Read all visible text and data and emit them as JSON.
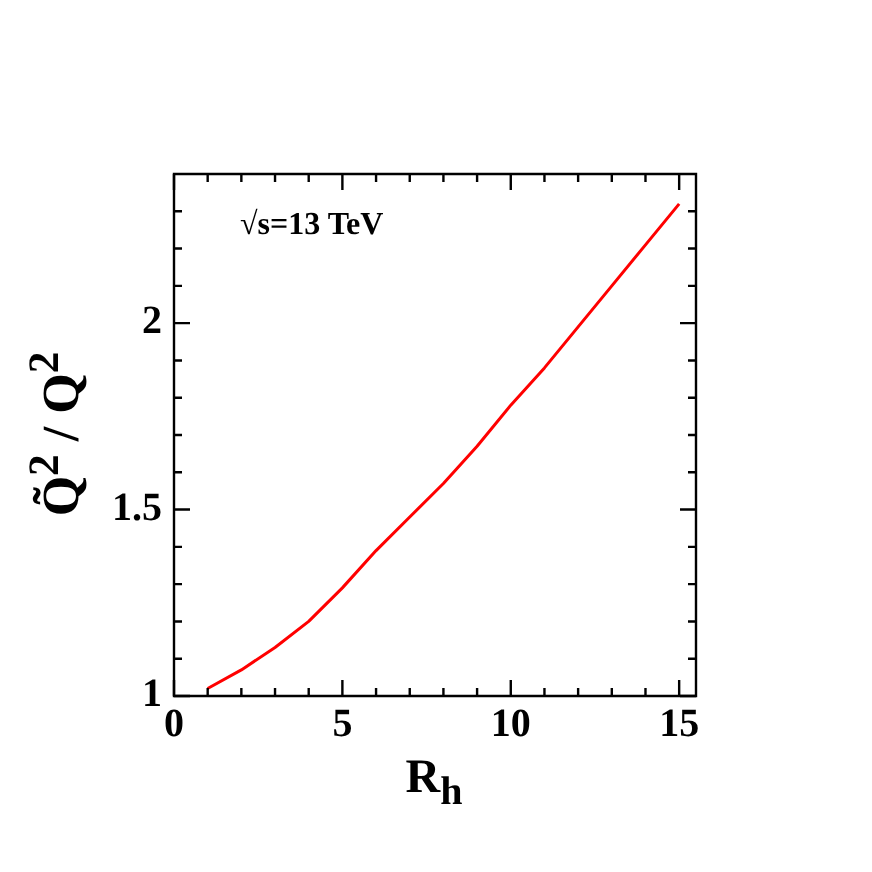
{
  "chart_data": {
    "type": "line",
    "xlabel": "R$_{h}$",
    "ylabel": "Q̃$^{2}$ / Q$^{2}$",
    "annotations": [
      "√s=13 TeV"
    ],
    "x": [
      1,
      2,
      3,
      4,
      5,
      6,
      7,
      8,
      9,
      10,
      11,
      12,
      13,
      14,
      15
    ],
    "series": [
      {
        "color": "#ff0000",
        "values": [
          1.02,
          1.07,
          1.13,
          1.2,
          1.29,
          1.39,
          1.48,
          1.57,
          1.67,
          1.78,
          1.88,
          1.99,
          2.1,
          2.21,
          2.32
        ]
      }
    ],
    "xlim": [
      0,
      15.5
    ],
    "ylim": [
      1,
      2.4
    ],
    "xticks": [
      0,
      {
        "value": 1,
        "label": null
      },
      {
        "value": 2,
        "label": null
      },
      {
        "value": 3,
        "label": null
      },
      {
        "value": 4,
        "label": null
      },
      5,
      {
        "value": 6,
        "label": null
      },
      {
        "value": 7,
        "label": null
      },
      {
        "value": 8,
        "label": null
      },
      {
        "value": 9,
        "label": null
      },
      10,
      {
        "value": 11,
        "label": null
      },
      {
        "value": 12,
        "label": null
      },
      {
        "value": 13,
        "label": null
      },
      {
        "value": 14,
        "label": null
      },
      15
    ],
    "yticks": [
      1,
      {
        "value": 1.1,
        "label": null
      },
      {
        "value": 1.2,
        "label": null
      },
      {
        "value": 1.3,
        "label": null
      },
      {
        "value": 1.4,
        "label": null
      },
      1.5,
      {
        "value": 1.6,
        "label": null
      },
      {
        "value": 1.7,
        "label": null
      },
      {
        "value": 1.8,
        "label": null
      },
      {
        "value": 1.9,
        "label": null
      },
      2,
      {
        "value": 2.1,
        "label": null
      },
      {
        "value": 2.2,
        "label": null
      },
      {
        "value": 2.3,
        "label": null
      }
    ],
    "grid": false,
    "legend": false,
    "marker": "none",
    "line_style": "solid"
  }
}
